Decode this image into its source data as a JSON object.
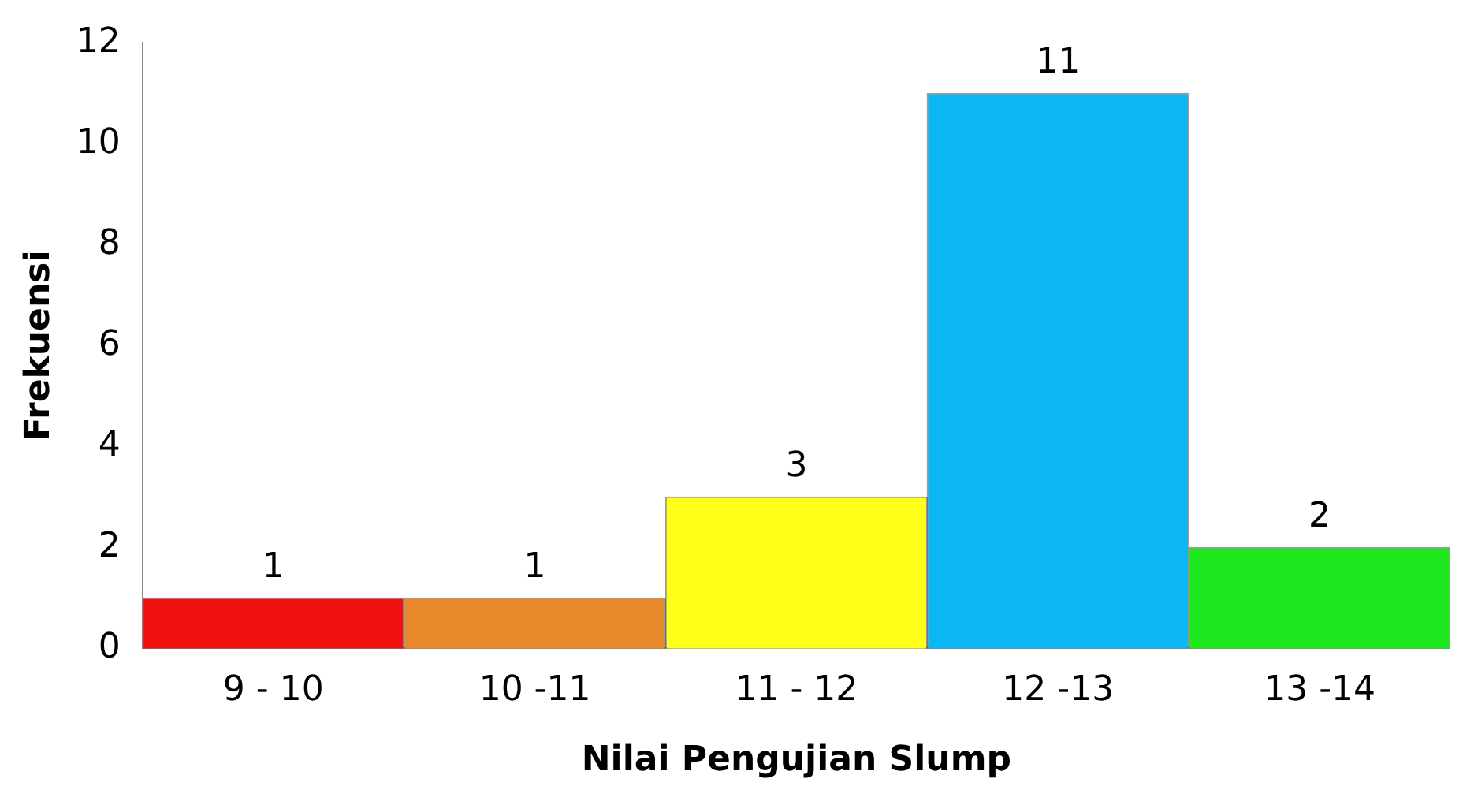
{
  "chart_data": {
    "type": "bar",
    "xlabel": "Nilai Pengujian Slump",
    "ylabel": "Frekuensi",
    "categories": [
      "9 - 10",
      "10 -11",
      "11 - 12",
      "12 -13",
      "13 -14"
    ],
    "values": [
      1,
      1,
      3,
      11,
      2
    ],
    "colors": [
      "#f01010",
      "#e8892c",
      "#ffff1a",
      "#0bb7f5",
      "#1ee81e"
    ],
    "ylim": [
      0,
      12
    ],
    "yticks": [
      0,
      2,
      4,
      6,
      8,
      10,
      12
    ],
    "grid": false,
    "legend": false,
    "data_labels": true
  }
}
